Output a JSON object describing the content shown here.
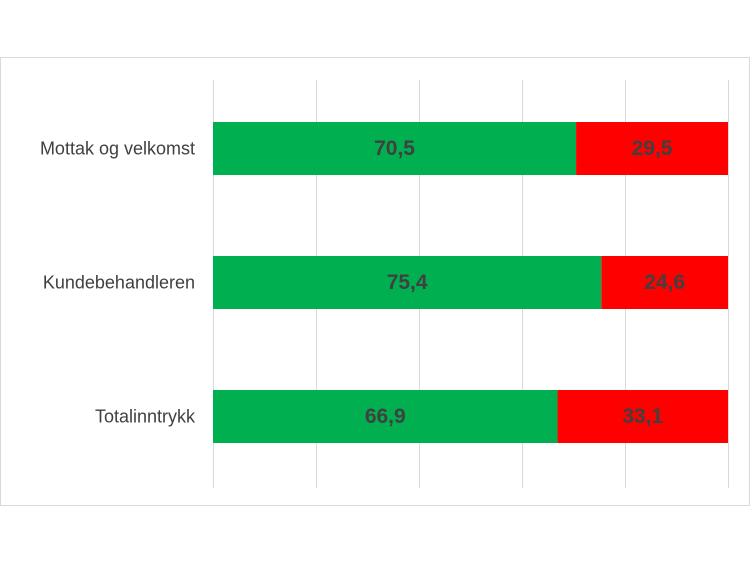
{
  "chart_data": {
    "type": "bar",
    "orientation": "horizontal",
    "stacked": true,
    "categories": [
      "Mottak og velkomst",
      "Kundebehandleren",
      "Totalinntrykk"
    ],
    "series": [
      {
        "values": [
          70.5,
          75.4,
          66.9
        ],
        "labels": [
          "70,5",
          "75,4",
          "66,9"
        ],
        "color": "#00b050"
      },
      {
        "values": [
          29.5,
          24.6,
          33.1
        ],
        "labels": [
          "29,5",
          "24,6",
          "33,1"
        ],
        "color": "#ff0000"
      }
    ],
    "xlim": [
      0,
      100
    ],
    "grid": true,
    "legend": false
  }
}
